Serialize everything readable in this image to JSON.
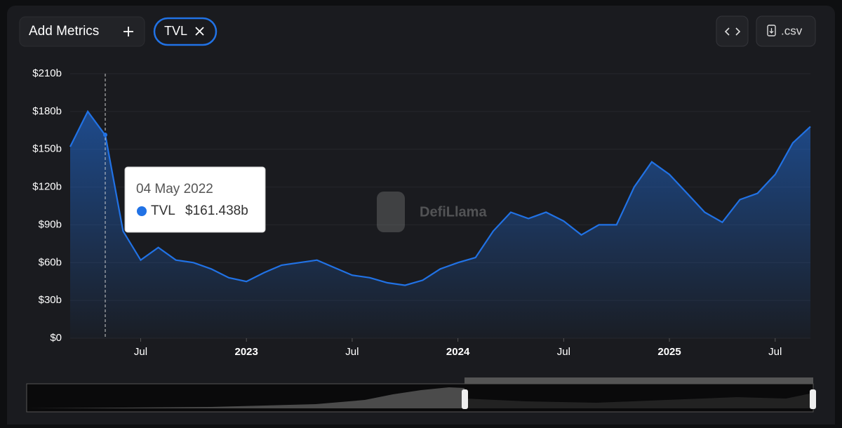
{
  "toolbar": {
    "add_metrics": "Add Metrics",
    "csv": ".csv"
  },
  "watermark": "DefiLlama",
  "tooltip": {
    "date": "04 May 2022",
    "value": 161.438,
    "value_label": "$161.438b"
  },
  "chart_data": {
    "type": "area",
    "x": [
      "2022-03",
      "2022-04",
      "2022-05",
      "2022-06",
      "2022-07",
      "2022-08",
      "2022-09",
      "2022-10",
      "2022-11",
      "2022-12",
      "2023-01",
      "2023-02",
      "2023-03",
      "2023-04",
      "2023-05",
      "2023-06",
      "2023-07",
      "2023-08",
      "2023-09",
      "2023-10",
      "2023-11",
      "2023-12",
      "2024-01",
      "2024-02",
      "2024-03",
      "2024-04",
      "2024-05",
      "2024-06",
      "2024-07",
      "2024-08",
      "2024-09",
      "2024-10",
      "2024-11",
      "2024-12",
      "2025-01",
      "2025-02",
      "2025-03",
      "2025-04",
      "2025-05",
      "2025-06",
      "2025-07",
      "2025-08",
      "2025-09"
    ],
    "series": [
      {
        "name": "TVL",
        "color": "#2172e5",
        "values": [
          152,
          180,
          161,
          85,
          62,
          72,
          62,
          60,
          55,
          48,
          45,
          52,
          58,
          60,
          62,
          56,
          50,
          48,
          44,
          42,
          46,
          55,
          60,
          64,
          85,
          100,
          95,
          100,
          93,
          82,
          90,
          90,
          120,
          140,
          130,
          115,
          100,
          92,
          110,
          115,
          130,
          155,
          168
        ]
      }
    ],
    "xlim": [
      "2022-03",
      "2025-09"
    ],
    "xticks": [
      {
        "value": "2022-07",
        "label": "Jul"
      },
      {
        "value": "2023-01",
        "label": "2023"
      },
      {
        "value": "2023-07",
        "label": "Jul"
      },
      {
        "value": "2024-01",
        "label": "2024"
      },
      {
        "value": "2024-07",
        "label": "Jul"
      },
      {
        "value": "2025-01",
        "label": "2025"
      },
      {
        "value": "2025-07",
        "label": "Jul"
      }
    ],
    "ylim": [
      0,
      210
    ],
    "yticks": [
      {
        "value": 0,
        "label": "$0"
      },
      {
        "value": 30,
        "label": "$30b"
      },
      {
        "value": 60,
        "label": "$60b"
      },
      {
        "value": 90,
        "label": "$90b"
      },
      {
        "value": 120,
        "label": "$120b"
      },
      {
        "value": 150,
        "label": "$150b"
      },
      {
        "value": 180,
        "label": "$180b"
      },
      {
        "value": 210,
        "label": "$210b"
      }
    ],
    "grid": true
  }
}
